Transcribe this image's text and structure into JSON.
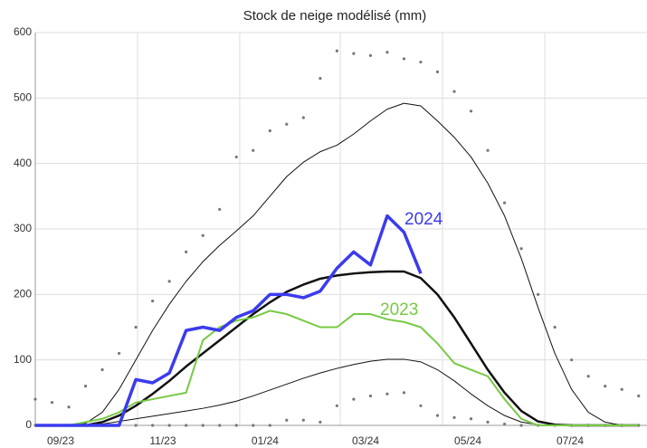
{
  "chart_data": {
    "type": "line",
    "title": "Stock de neige modélisé (mm)",
    "x": [
      0,
      10,
      20,
      30,
      40,
      50,
      60,
      70,
      80,
      90,
      100,
      110,
      120,
      130,
      140,
      150,
      160,
      170,
      180,
      190,
      200,
      210,
      220,
      230,
      240,
      250,
      260,
      270,
      280,
      290,
      300,
      310,
      320,
      330,
      340,
      350,
      360
    ],
    "xlim": [
      0,
      365
    ],
    "xticks": [
      {
        "value": 0,
        "label": "09/23"
      },
      {
        "value": 61,
        "label": "11/23"
      },
      {
        "value": 122,
        "label": "01/24"
      },
      {
        "value": 182,
        "label": "03/24"
      },
      {
        "value": 243,
        "label": "05/24"
      },
      {
        "value": 304,
        "label": "07/24"
      }
    ],
    "ylim": [
      0,
      600
    ],
    "yticks": [
      0,
      100,
      200,
      300,
      400,
      500,
      600
    ],
    "grid": true,
    "series": [
      {
        "color": "#777777",
        "style": "dots",
        "values": [
          40,
          35,
          28,
          60,
          85,
          110,
          150,
          190,
          220,
          265,
          290,
          330,
          410,
          420,
          450,
          460,
          470,
          530,
          572,
          568,
          565,
          570,
          560,
          555,
          540,
          510,
          480,
          420,
          340,
          270,
          200,
          150,
          100,
          75,
          60,
          55,
          45
        ]
      },
      {
        "color": "#777777",
        "style": "dots",
        "values": [
          0,
          0,
          0,
          0,
          0,
          0,
          0,
          0,
          0,
          0,
          0,
          0,
          0,
          0,
          0,
          8,
          8,
          5,
          30,
          40,
          45,
          48,
          50,
          30,
          15,
          12,
          10,
          5,
          2,
          0,
          0,
          0,
          0,
          0,
          0,
          0,
          0
        ]
      },
      {
        "color": "#111111",
        "style": "thin",
        "values": [
          0,
          0,
          0,
          3,
          20,
          55,
          100,
          145,
          185,
          220,
          250,
          275,
          297,
          320,
          350,
          380,
          402,
          418,
          428,
          445,
          465,
          483,
          492,
          488,
          465,
          440,
          410,
          370,
          320,
          255,
          180,
          110,
          55,
          20,
          5,
          0,
          0
        ]
      },
      {
        "color": "#111111",
        "style": "thin",
        "values": [
          0,
          0,
          0,
          0,
          2,
          6,
          10,
          14,
          18,
          22,
          26,
          31,
          37,
          45,
          54,
          63,
          72,
          80,
          87,
          93,
          98,
          101,
          101,
          97,
          85,
          68,
          48,
          30,
          15,
          5,
          1,
          0,
          0,
          0,
          0,
          0,
          0
        ]
      },
      {
        "color": "#111111",
        "style": "thick",
        "values": [
          0,
          0,
          0,
          0,
          5,
          15,
          30,
          48,
          68,
          90,
          110,
          130,
          150,
          170,
          188,
          204,
          215,
          224,
          229,
          232,
          234,
          235,
          235,
          225,
          200,
          165,
          125,
          85,
          50,
          22,
          6,
          1,
          0,
          0,
          0,
          0,
          0
        ]
      },
      {
        "name": "2023",
        "color": "#77c944",
        "style": "medium",
        "values": [
          0,
          0,
          0,
          5,
          10,
          20,
          35,
          40,
          45,
          50,
          130,
          150,
          160,
          165,
          175,
          170,
          160,
          150,
          150,
          170,
          170,
          162,
          158,
          150,
          125,
          95,
          85,
          75,
          40,
          10,
          0,
          0,
          0,
          0,
          0,
          0,
          0
        ]
      },
      {
        "name": "2024",
        "color": "#3b3bee",
        "style": "bold",
        "values": [
          0,
          0,
          0,
          0,
          0,
          0,
          70,
          65,
          80,
          145,
          150,
          145,
          165,
          175,
          200,
          200,
          195,
          205,
          240,
          265,
          245,
          320,
          295,
          232,
          null,
          null,
          null,
          null,
          null,
          null,
          null,
          null,
          null,
          null,
          null,
          null,
          null
        ]
      }
    ]
  }
}
